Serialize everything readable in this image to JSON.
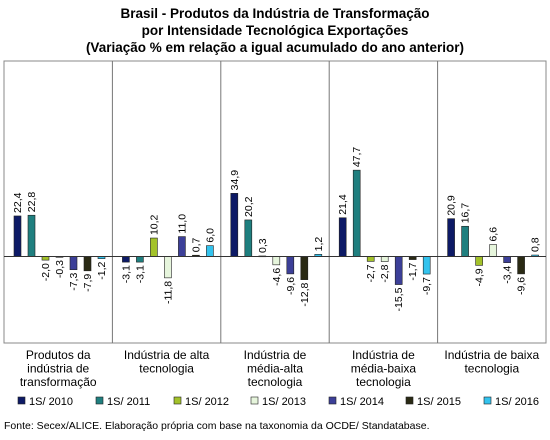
{
  "chart_data": {
    "type": "bar",
    "title_lines": [
      "Brasil - Produtos da Indústria de Transformação",
      "por Intensidade Tecnológica Exportações",
      "(Variação % em relação a igual acumulado do ano anterior)"
    ],
    "categories": [
      [
        "Produtos da",
        "indústria de",
        "transformação"
      ],
      [
        "Indústria de alta",
        "tecnologia"
      ],
      [
        "Indústria de",
        "média-alta",
        "tecnologia"
      ],
      [
        "Indústria de",
        "média-baixa",
        "tecnologia"
      ],
      [
        "Indústria de baixa",
        "tecnologia"
      ]
    ],
    "series": [
      {
        "name": "1S/ 2010",
        "color": "#0d1a66",
        "values": [
          22.4,
          -3.1,
          34.9,
          21.4,
          20.9
        ]
      },
      {
        "name": "1S/ 2011",
        "color": "#1f7f7f",
        "values": [
          22.8,
          -3.1,
          20.2,
          47.7,
          16.7
        ]
      },
      {
        "name": "1S/ 2012",
        "color": "#a3c22a",
        "values": [
          -2.0,
          10.2,
          0.3,
          -2.7,
          -4.9
        ]
      },
      {
        "name": "1S/ 2013",
        "color": "#e6f5dc",
        "values": [
          -0.3,
          -11.8,
          -4.6,
          -2.8,
          6.6
        ]
      },
      {
        "name": "1S/ 2014",
        "color": "#3c3f98",
        "values": [
          -7.3,
          11.0,
          -9.6,
          -15.5,
          -3.4
        ]
      },
      {
        "name": "1S/ 2015",
        "color": "#2a2a14",
        "values": [
          -7.9,
          0.7,
          -12.8,
          -1.7,
          -9.6
        ]
      },
      {
        "name": "1S/ 2016",
        "color": "#33c3ee",
        "values": [
          -1.2,
          6.0,
          1.2,
          -9.7,
          0.8
        ]
      }
    ],
    "value_labels": [
      [
        "22,4",
        "-3,1",
        "34,9",
        "21,4",
        "20,9"
      ],
      [
        "22,8",
        "-3,1",
        "20,2",
        "47,7",
        "16,7"
      ],
      [
        "-2,0",
        "10,2",
        "0,3",
        "-2,7",
        "-4,9"
      ],
      [
        "-0,3",
        "-11,8",
        "-4,6",
        "-2,8",
        "6,6"
      ],
      [
        "-7,3",
        "11,0",
        "-9,6",
        "-15,5",
        "-3,4"
      ],
      [
        "-7,9",
        "0,7",
        "-12,8",
        "-1,7",
        "-9,6"
      ],
      [
        "-1,2",
        "6,0",
        "1,2",
        "-9,7",
        "0,8"
      ]
    ],
    "ylim": [
      -20,
      50
    ],
    "legend_position": "bottom",
    "grid": false
  },
  "source": "Fonte: Secex/ALICE. Elaboração própria com base na taxonomia da OCDE/ Standatabase."
}
